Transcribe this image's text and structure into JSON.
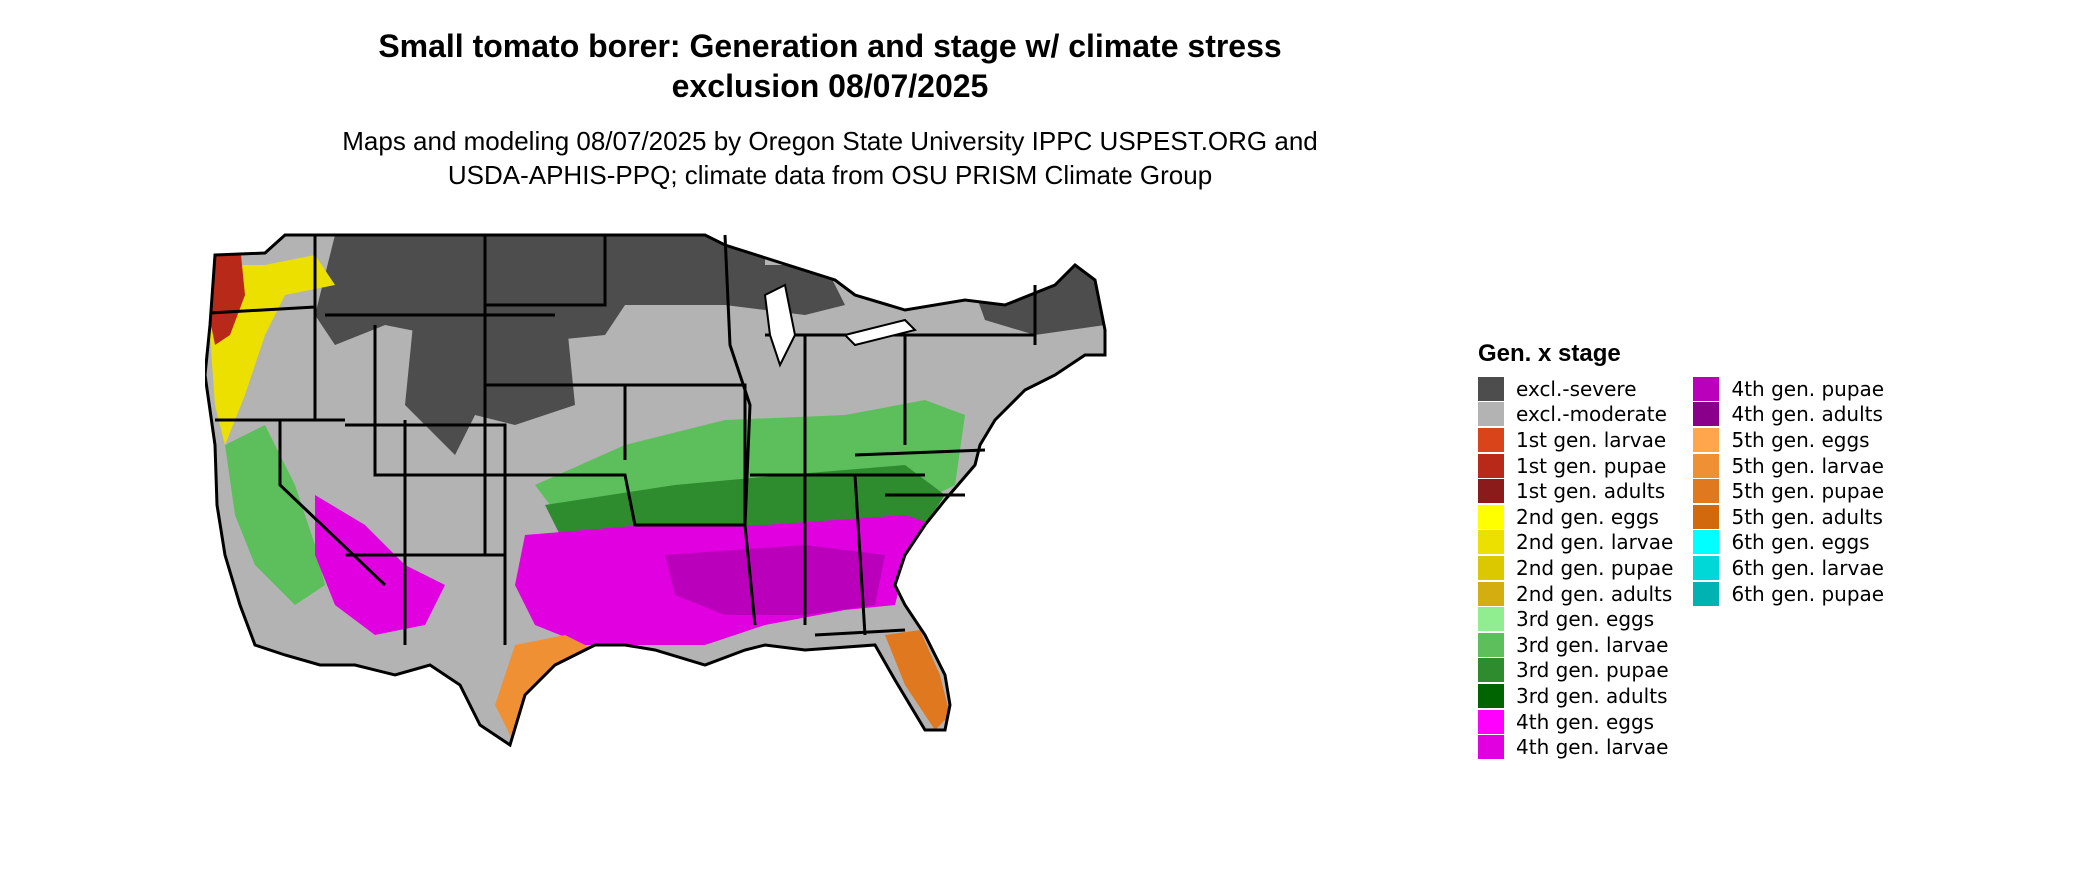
{
  "title_lines": [
    "Small tomato borer: Generation and stage w/ climate stress",
    "exclusion 08/07/2025"
  ],
  "subtitle_lines": [
    "Maps and modeling 08/07/2025 by Oregon State University IPPC USPEST.ORG and",
    "USDA-APHIS-PPQ; climate data from OSU PRISM Climate Group"
  ],
  "legend": {
    "title": "Gen. x stage",
    "items": [
      {
        "label": "excl.-severe",
        "color": "#4d4d4d"
      },
      {
        "label": "excl.-moderate",
        "color": "#b3b3b3"
      },
      {
        "label": "1st gen. larvae",
        "color": "#d9441a"
      },
      {
        "label": "1st gen. pupae",
        "color": "#b8291a"
      },
      {
        "label": "1st gen. adults",
        "color": "#8b1a1a"
      },
      {
        "label": "2nd gen. eggs",
        "color": "#ffff00"
      },
      {
        "label": "2nd gen. larvae",
        "color": "#ece000"
      },
      {
        "label": "2nd gen. pupae",
        "color": "#dcc800"
      },
      {
        "label": "2nd gen. adults",
        "color": "#d4ad10"
      },
      {
        "label": "3rd gen. eggs",
        "color": "#90ee90"
      },
      {
        "label": "3rd gen. larvae",
        "color": "#5cbf5c"
      },
      {
        "label": "3rd gen. pupae",
        "color": "#2e8b2e"
      },
      {
        "label": "3rd gen. adults",
        "color": "#006400"
      },
      {
        "label": "4th gen. eggs",
        "color": "#ff00ff"
      },
      {
        "label": "4th gen. larvae",
        "color": "#e000e0"
      },
      {
        "label": "4th gen. pupae",
        "color": "#bb00bb"
      },
      {
        "label": "4th gen. adults",
        "color": "#8b008b"
      },
      {
        "label": "5th gen. eggs",
        "color": "#ffa64d"
      },
      {
        "label": "5th gen. larvae",
        "color": "#f09035"
      },
      {
        "label": "5th gen. pupae",
        "color": "#e07820"
      },
      {
        "label": "5th gen. adults",
        "color": "#d26a0d"
      },
      {
        "label": "6th gen. eggs",
        "color": "#00ffff"
      },
      {
        "label": "6th gen. larvae",
        "color": "#00d8d8"
      },
      {
        "label": "6th gen. pupae",
        "color": "#00b2b2"
      }
    ]
  }
}
